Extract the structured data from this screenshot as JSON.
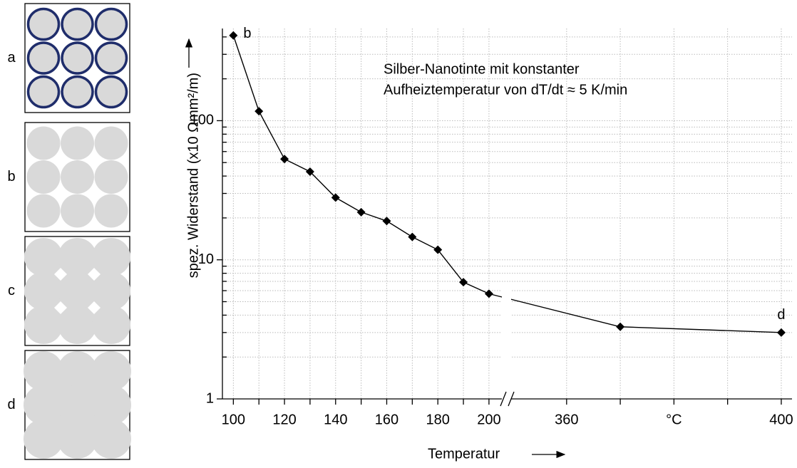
{
  "chart_data": {
    "type": "line",
    "note": [
      "Silber-Nanotinte mit konstanter",
      "Aufheiztemperatur von dT/dt ≈ 5 K/min"
    ],
    "ylabel": "spez. Widerstand (x10 Ωmm²/m)",
    "xlabel": "Temperatur",
    "ylog": true,
    "ylim": [
      1,
      460
    ],
    "yticks": [
      1,
      10,
      100
    ],
    "yminor": [
      2,
      3,
      4,
      5,
      6,
      7,
      8,
      9,
      20,
      30,
      40,
      50,
      60,
      70,
      80,
      90,
      200,
      300,
      400
    ],
    "grid": true,
    "color": "#000000",
    "x_segments": [
      {
        "xlim": [
          96,
          207
        ],
        "xticks": [
          100,
          120,
          140,
          160,
          180,
          200
        ],
        "xminor": [
          110,
          130,
          150,
          170,
          190
        ]
      },
      {
        "xlim": [
          349,
          402
        ],
        "xticks": [
          360,
          {
            "value": 380,
            "label": "°C"
          },
          400
        ],
        "xminor": [
          370,
          390
        ]
      }
    ],
    "x": [
      100,
      110,
      120,
      130,
      140,
      150,
      160,
      170,
      180,
      190,
      200,
      370,
      400
    ],
    "values": [
      410,
      117,
      53,
      43,
      28,
      22,
      19,
      14.6,
      11.8,
      6.9,
      5.7,
      3.3,
      3.0
    ],
    "point_labels": [
      "b",
      "d"
    ],
    "panels": [
      "a",
      "b",
      "c",
      "d"
    ]
  }
}
